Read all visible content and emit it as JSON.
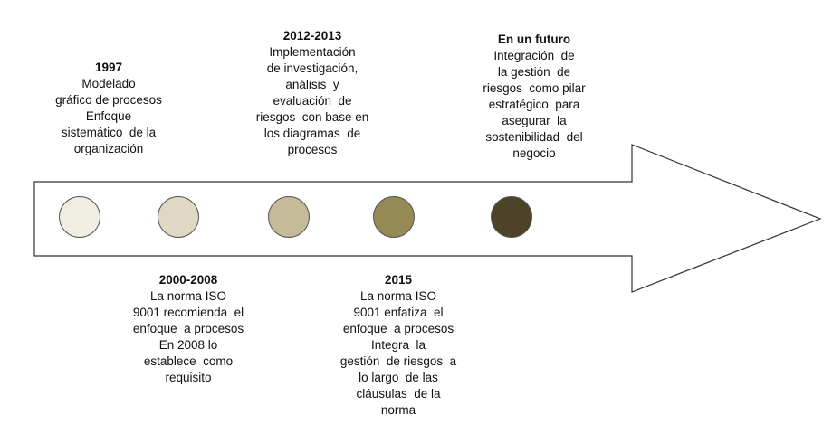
{
  "timeline": [
    {
      "year": "1997",
      "lines": [
        "Modelado",
        "gráfico de procesos",
        "Enfoque",
        "sistemático  de la",
        "organización"
      ],
      "color": "#f0eee3"
    },
    {
      "year": "2000-2008",
      "lines": [
        "La norma ISO",
        "9001 recomienda  el",
        "enfoque  a procesos",
        "En 2008 lo",
        "establece  como",
        "requisito"
      ],
      "color": "#dfd9c3"
    },
    {
      "year": "2012-2013",
      "lines": [
        "Implementación",
        "de investigación,",
        "análisis  y",
        "evaluación  de",
        "riesgos  con base en",
        "los diagramas  de",
        "procesos"
      ],
      "color": "#c6bb98"
    },
    {
      "year": "2015",
      "lines": [
        "La norma ISO",
        "9001 enfatiza  el",
        "enfoque  a procesos",
        "Integra  la",
        "gestión  de riesgos  a",
        "lo largo  de las",
        "cláusulas  de la",
        "norma"
      ],
      "color": "#958955"
    },
    {
      "year": "En un futuro",
      "lines": [
        "Integración  de",
        "la gestión  de",
        "riesgos  como pilar",
        "estratégico  para",
        "asegurar  la",
        "sostenibilidad  del",
        "negocio"
      ],
      "color": "#4c4329"
    }
  ]
}
